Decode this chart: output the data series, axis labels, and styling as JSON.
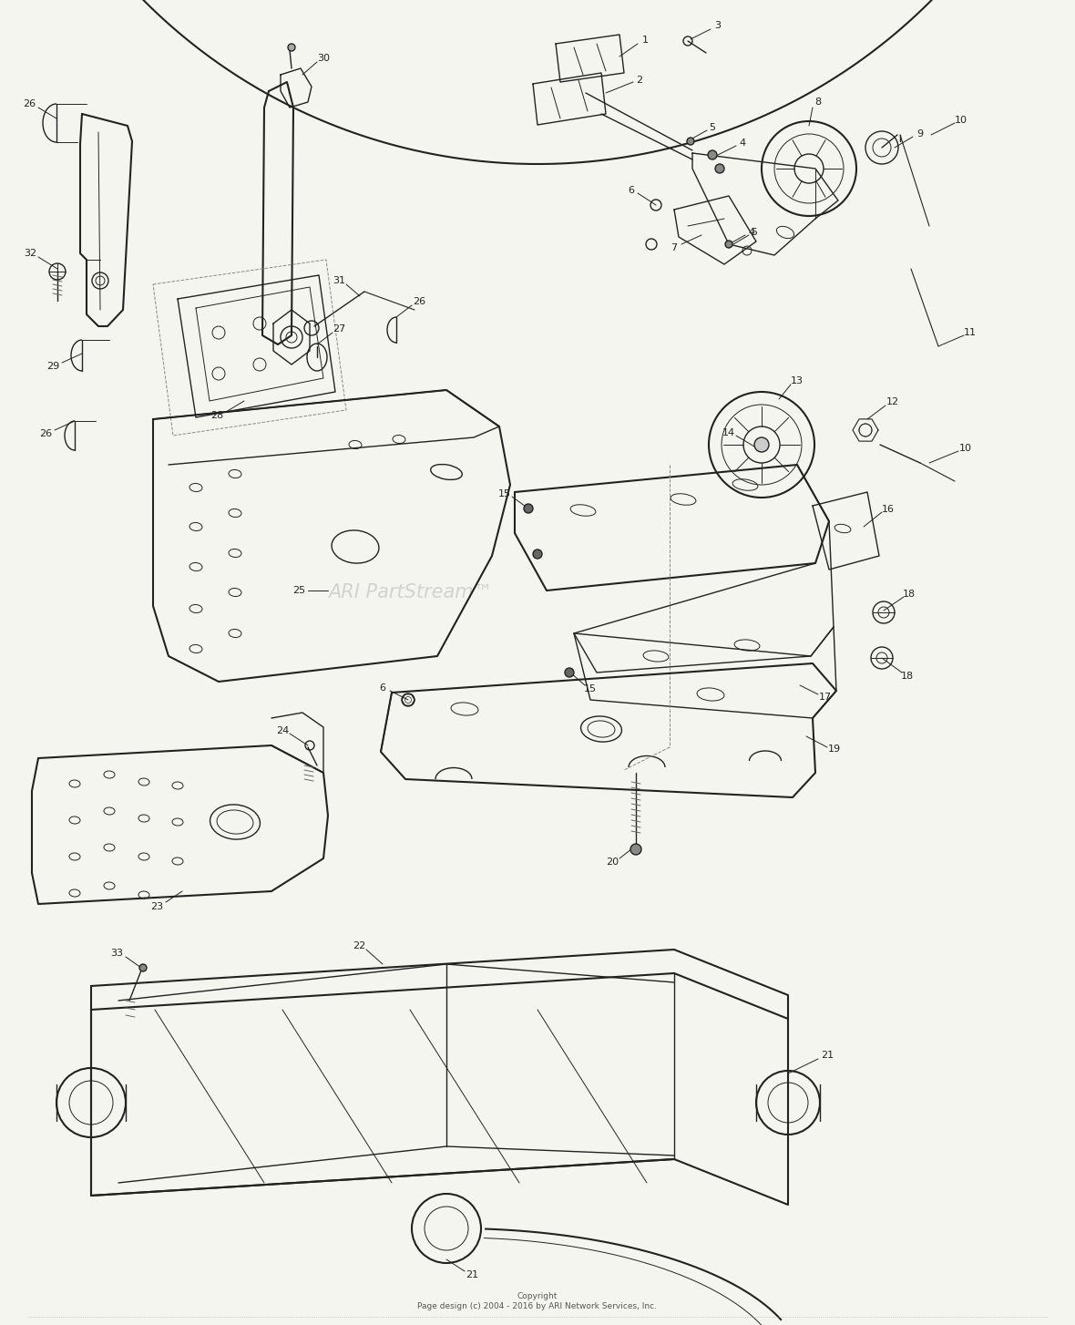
{
  "background_color": "#f5f5f0",
  "line_color": "#222222",
  "watermark": "ARI PartStream™",
  "watermark_color": "#bbbbbb",
  "copyright_text": "Copyright\nPage design (c) 2004 - 2016 by ARI Network Services, Inc.",
  "figsize": [
    11.8,
    14.54
  ],
  "dpi": 100
}
